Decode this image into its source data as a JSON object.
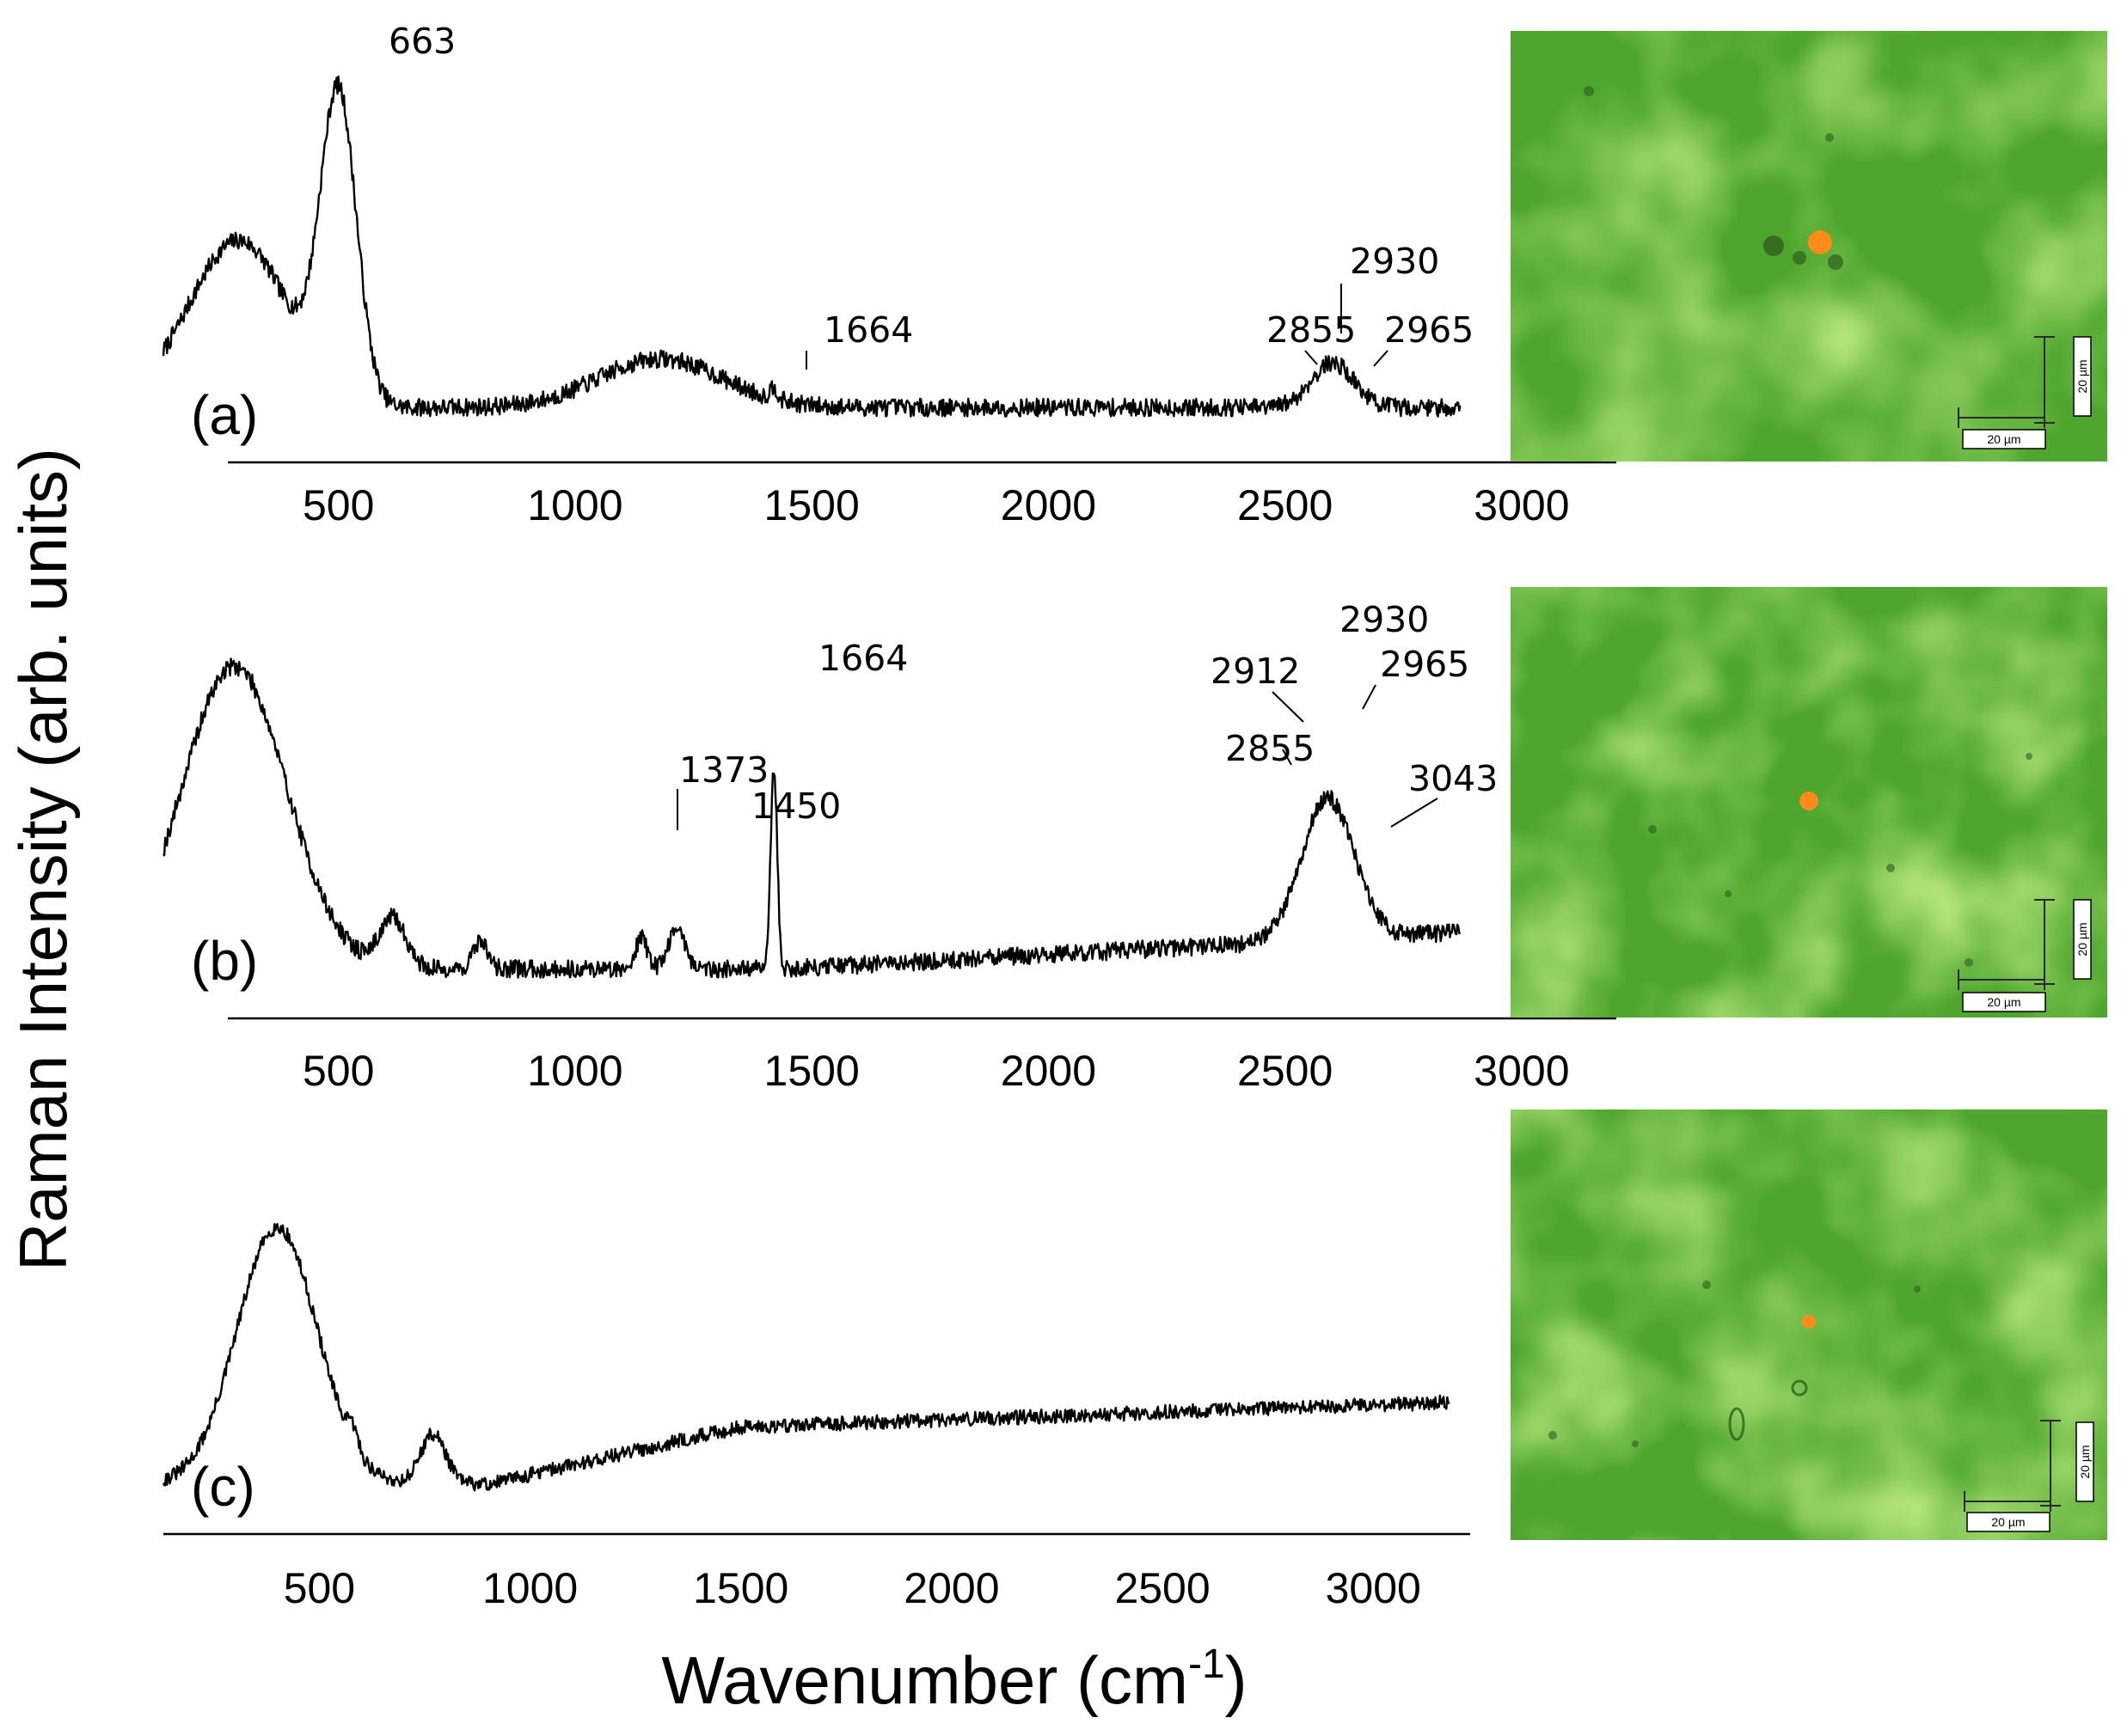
{
  "figure": {
    "y_axis_label": "Raman Intensity (arb. units)",
    "x_axis_label_main": "Wavenumber (cm",
    "x_axis_label_sup": "-1",
    "x_axis_label_end": ")"
  },
  "colors": {
    "line": "#000000",
    "micrograph_green": "#4fa62f",
    "micrograph_light": "#9fe84a",
    "hotspot": "#ff8c1a"
  },
  "chart_data": [
    {
      "type": "line",
      "panel_label": "(a)",
      "xlabel": "Wavenumber (cm-1)",
      "ylabel": "Raman Intensity (arb. units)",
      "x_ticks": [
        500,
        1000,
        1500,
        2000,
        2500,
        3000
      ],
      "xlim": [
        130,
        3200
      ],
      "x_data_range": [
        130,
        2870
      ],
      "ylim": [
        0,
        1
      ],
      "features": [
        {
          "center": 250,
          "width": 100,
          "height": 0.25
        },
        {
          "center": 330,
          "width": 90,
          "height": 0.2
        },
        {
          "center": 500,
          "width": 38,
          "height": 0.75
        },
        {
          "center": 1180,
          "width": 130,
          "height": 0.12
        },
        {
          "center": 1420,
          "width": 8,
          "height": 0.03
        },
        {
          "center": 2600,
          "width": 45,
          "height": 0.11
        }
      ],
      "baseline": 0.08,
      "annotations": [
        {
          "text": "663",
          "x": 500
        },
        {
          "text": "1664",
          "x": 1420
        },
        {
          "text": "2855",
          "x": 2540
        },
        {
          "text": "2930",
          "x": 2600
        },
        {
          "text": "2965",
          "x": 2680
        }
      ],
      "micrograph_scale_label": "20 µm"
    },
    {
      "type": "line",
      "panel_label": "(b)",
      "xlabel": "Wavenumber (cm-1)",
      "ylabel": "Raman Intensity (arb. units)",
      "x_ticks": [
        500,
        1000,
        1500,
        2000,
        2500,
        3000
      ],
      "xlim": [
        130,
        3200
      ],
      "x_data_range": [
        130,
        2870
      ],
      "ylim": [
        0,
        1
      ],
      "features": [
        {
          "center": 280,
          "width": 110,
          "height": 0.75
        },
        {
          "center": 615,
          "width": 28,
          "height": 0.12
        },
        {
          "center": 800,
          "width": 15,
          "height": 0.07
        },
        {
          "center": 1140,
          "width": 12,
          "height": 0.08
        },
        {
          "center": 1215,
          "width": 18,
          "height": 0.1
        },
        {
          "center": 1420,
          "width": 7,
          "height": 0.5
        },
        {
          "center": 2590,
          "width": 55,
          "height": 0.35
        }
      ],
      "baseline": 0.08,
      "annotations": [
        {
          "text": "1373",
          "x": 1140
        },
        {
          "text": "1450",
          "x": 1215
        },
        {
          "text": "1664",
          "x": 1420
        },
        {
          "text": "2855",
          "x": 2540
        },
        {
          "text": "2912",
          "x": 2565
        },
        {
          "text": "2930",
          "x": 2600
        },
        {
          "text": "2965",
          "x": 2640
        },
        {
          "text": "3043",
          "x": 2730
        }
      ],
      "micrograph_scale_label": "20 µm"
    },
    {
      "type": "line",
      "panel_label": "(c)",
      "xlabel": "Wavenumber (cm-1)",
      "ylabel": "Raman Intensity (arb. units)",
      "x_ticks": [
        500,
        1000,
        1500,
        2000,
        2500,
        3000
      ],
      "xlim": [
        130,
        3230
      ],
      "x_data_range": [
        130,
        3180
      ],
      "ylim": [
        0,
        1
      ],
      "features": [
        {
          "center": 400,
          "width": 95,
          "height": 0.72
        },
        {
          "center": 580,
          "width": 12,
          "height": 0.05
        },
        {
          "center": 770,
          "width": 30,
          "height": 0.14
        }
      ],
      "baseline": 0.08,
      "annotations": [],
      "micrograph_scale_label": "20 µm"
    }
  ]
}
